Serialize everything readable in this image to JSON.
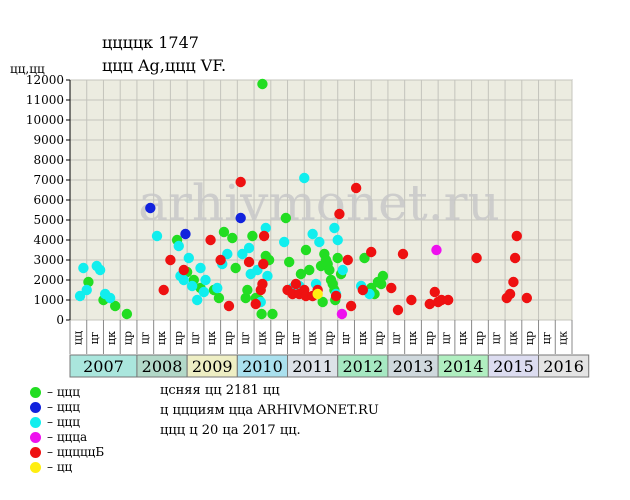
{
  "title_line1": "ццццк 1747",
  "title_line2": "ццц Ag,ццц VF.",
  "y_unit": "цц,цц",
  "watermark": "arhivmonet.ru",
  "legend": [
    {
      "label": "– ццц",
      "color": "#22dd22"
    },
    {
      "label": "– ццц",
      "color": "#1122dd"
    },
    {
      "label": "– ццц",
      "color": "#11eeee"
    },
    {
      "label": "– цццa",
      "color": "#ee11ee"
    },
    {
      "label": "– цццццБ",
      "color": "#ee1111"
    },
    {
      "label": "– цц",
      "color": "#ffee11"
    }
  ],
  "info": [
    "цcняя цц 2181 цц",
    "ц ццциям ццa ARHIVMONET.RU",
    "ццц ц 20 цa 2017 цц."
  ],
  "chart_data": {
    "type": "scatter",
    "ylim": [
      0,
      12000
    ],
    "y_ticks": [
      0,
      1000,
      2000,
      3000,
      4000,
      5000,
      6000,
      7000,
      8000,
      9000,
      10000,
      11000,
      12000
    ],
    "months": [
      "цц",
      "цг",
      "цк",
      "цр",
      "цг",
      "цк",
      "цр",
      "цг",
      "цк",
      "цр",
      "цг",
      "цк",
      "цр",
      "цг",
      "цк",
      "цр",
      "цг",
      "цк",
      "цр",
      "цг",
      "цк",
      "цр",
      "цг",
      "цк",
      "цр",
      "цг",
      "цк",
      "цр",
      "цг",
      "цк"
    ],
    "years": [
      {
        "label": "2007",
        "span": 4,
        "color": "#aae6dd"
      },
      {
        "label": "2008",
        "span": 3,
        "color": "#b2d8c8"
      },
      {
        "label": "2009",
        "span": 3,
        "color": "#eeeec4"
      },
      {
        "label": "2010",
        "span": 3,
        "color": "#aae0ee"
      },
      {
        "label": "2011",
        "span": 3,
        "color": "#dde2e8"
      },
      {
        "label": "2012",
        "span": 3,
        "color": "#a6e8c2"
      },
      {
        "label": "2013",
        "span": 3,
        "color": "#cfd8dd"
      },
      {
        "label": "2014",
        "span": 3,
        "color": "#b0eec0"
      },
      {
        "label": "2015",
        "span": 3,
        "color": "#dcdcf0"
      },
      {
        "label": "2016",
        "span": 3,
        "color": "#e4e4e4"
      }
    ],
    "series": [
      {
        "name": "– ццц",
        "color": "#22dd22",
        "points": [
          [
            0.6,
            1900
          ],
          [
            1.5,
            1000
          ],
          [
            2.2,
            700
          ],
          [
            2.9,
            300
          ],
          [
            5.9,
            4000
          ],
          [
            6.5,
            2400
          ],
          [
            6.9,
            2000
          ],
          [
            7.3,
            1600
          ],
          [
            8.1,
            1500
          ],
          [
            8.4,
            1100
          ],
          [
            8.7,
            4400
          ],
          [
            9.2,
            4100
          ],
          [
            9.4,
            2600
          ],
          [
            10.0,
            1100
          ],
          [
            10.1,
            1500
          ],
          [
            10.4,
            4200
          ],
          [
            10.6,
            1100
          ],
          [
            10.8,
            1000
          ],
          [
            10.95,
            300
          ],
          [
            11.0,
            11800
          ],
          [
            11.2,
            3200
          ],
          [
            11.4,
            3000
          ],
          [
            11.6,
            300
          ],
          [
            12.4,
            5100
          ],
          [
            12.6,
            2900
          ],
          [
            13.3,
            2300
          ],
          [
            13.6,
            3500
          ],
          [
            13.8,
            2500
          ],
          [
            14.5,
            2700
          ],
          [
            14.7,
            3300
          ],
          [
            14.8,
            3000
          ],
          [
            14.9,
            2800
          ],
          [
            15.0,
            2500
          ],
          [
            15.1,
            2000
          ],
          [
            15.2,
            1800
          ],
          [
            15.3,
            1500
          ],
          [
            15.35,
            1000
          ],
          [
            15.5,
            3100
          ],
          [
            15.7,
            2300
          ],
          [
            14.6,
            900
          ],
          [
            17.1,
            3100
          ],
          [
            17.5,
            1600
          ],
          [
            17.7,
            1300
          ],
          [
            17.9,
            1900
          ],
          [
            18.2,
            2200
          ],
          [
            18.1,
            1800
          ]
        ]
      },
      {
        "name": "– ццц",
        "color": "#1122dd",
        "points": [
          [
            4.3,
            5600
          ],
          [
            6.4,
            4300
          ],
          [
            9.7,
            5100
          ]
        ]
      },
      {
        "name": "– ццц",
        "color": "#11eeee",
        "points": [
          [
            0.1,
            1200
          ],
          [
            0.3,
            2600
          ],
          [
            0.5,
            1500
          ],
          [
            1.1,
            2700
          ],
          [
            1.3,
            2500
          ],
          [
            1.6,
            1300
          ],
          [
            1.9,
            1100
          ],
          [
            4.7,
            4200
          ],
          [
            6.0,
            3700
          ],
          [
            6.1,
            2200
          ],
          [
            6.3,
            2000
          ],
          [
            6.6,
            3100
          ],
          [
            6.8,
            1700
          ],
          [
            7.1,
            1000
          ],
          [
            7.3,
            2600
          ],
          [
            7.5,
            1400
          ],
          [
            7.6,
            2000
          ],
          [
            8.3,
            1600
          ],
          [
            8.6,
            2800
          ],
          [
            8.9,
            3300
          ],
          [
            9.8,
            3300
          ],
          [
            10.2,
            3600
          ],
          [
            10.3,
            2300
          ],
          [
            10.7,
            2500
          ],
          [
            10.9,
            900
          ],
          [
            11.2,
            4600
          ],
          [
            11.3,
            2200
          ],
          [
            12.3,
            3900
          ],
          [
            12.8,
            1600
          ],
          [
            13.0,
            1400
          ],
          [
            13.2,
            1700
          ],
          [
            13.5,
            7100
          ],
          [
            14.0,
            4300
          ],
          [
            14.2,
            1800
          ],
          [
            14.4,
            3900
          ],
          [
            15.3,
            4600
          ],
          [
            15.5,
            4000
          ],
          [
            15.8,
            2500
          ],
          [
            15.4,
            1300
          ],
          [
            16.9,
            1700
          ],
          [
            17.4,
            1300
          ]
        ]
      },
      {
        "name": "– цццa",
        "color": "#ee11ee",
        "points": [
          [
            15.75,
            300
          ],
          [
            21.4,
            3500
          ]
        ]
      },
      {
        "name": "– цццццБ",
        "color": "#ee1111",
        "points": [
          [
            5.1,
            1500
          ],
          [
            5.5,
            3000
          ],
          [
            6.3,
            2500
          ],
          [
            7.9,
            4000
          ],
          [
            8.5,
            3000
          ],
          [
            9.0,
            700
          ],
          [
            9.7,
            6900
          ],
          [
            10.2,
            2900
          ],
          [
            10.6,
            800
          ],
          [
            10.9,
            1500
          ],
          [
            11.0,
            1800
          ],
          [
            11.05,
            2800
          ],
          [
            11.1,
            4200
          ],
          [
            12.5,
            1500
          ],
          [
            12.8,
            1300
          ],
          [
            13.0,
            1800
          ],
          [
            13.2,
            1300
          ],
          [
            13.5,
            1500
          ],
          [
            13.6,
            1200
          ],
          [
            14.0,
            1200
          ],
          [
            14.3,
            1500
          ],
          [
            15.4,
            1200
          ],
          [
            15.6,
            5300
          ],
          [
            16.1,
            3000
          ],
          [
            16.3,
            700
          ],
          [
            16.6,
            6600
          ],
          [
            17.0,
            1500
          ],
          [
            17.5,
            3400
          ],
          [
            18.7,
            1600
          ],
          [
            19.1,
            500
          ],
          [
            19.4,
            3300
          ],
          [
            19.9,
            1000
          ],
          [
            21.0,
            800
          ],
          [
            21.3,
            1400
          ],
          [
            21.5,
            900
          ],
          [
            21.7,
            1000
          ],
          [
            22.1,
            1000
          ],
          [
            23.8,
            3100
          ],
          [
            25.6,
            1100
          ],
          [
            25.8,
            1300
          ],
          [
            26.0,
            1900
          ],
          [
            26.1,
            3100
          ],
          [
            26.2,
            4200
          ],
          [
            26.8,
            1100
          ]
        ]
      },
      {
        "name": "– цц",
        "color": "#ffee11",
        "points": [
          [
            14.3,
            1300
          ]
        ]
      }
    ]
  }
}
